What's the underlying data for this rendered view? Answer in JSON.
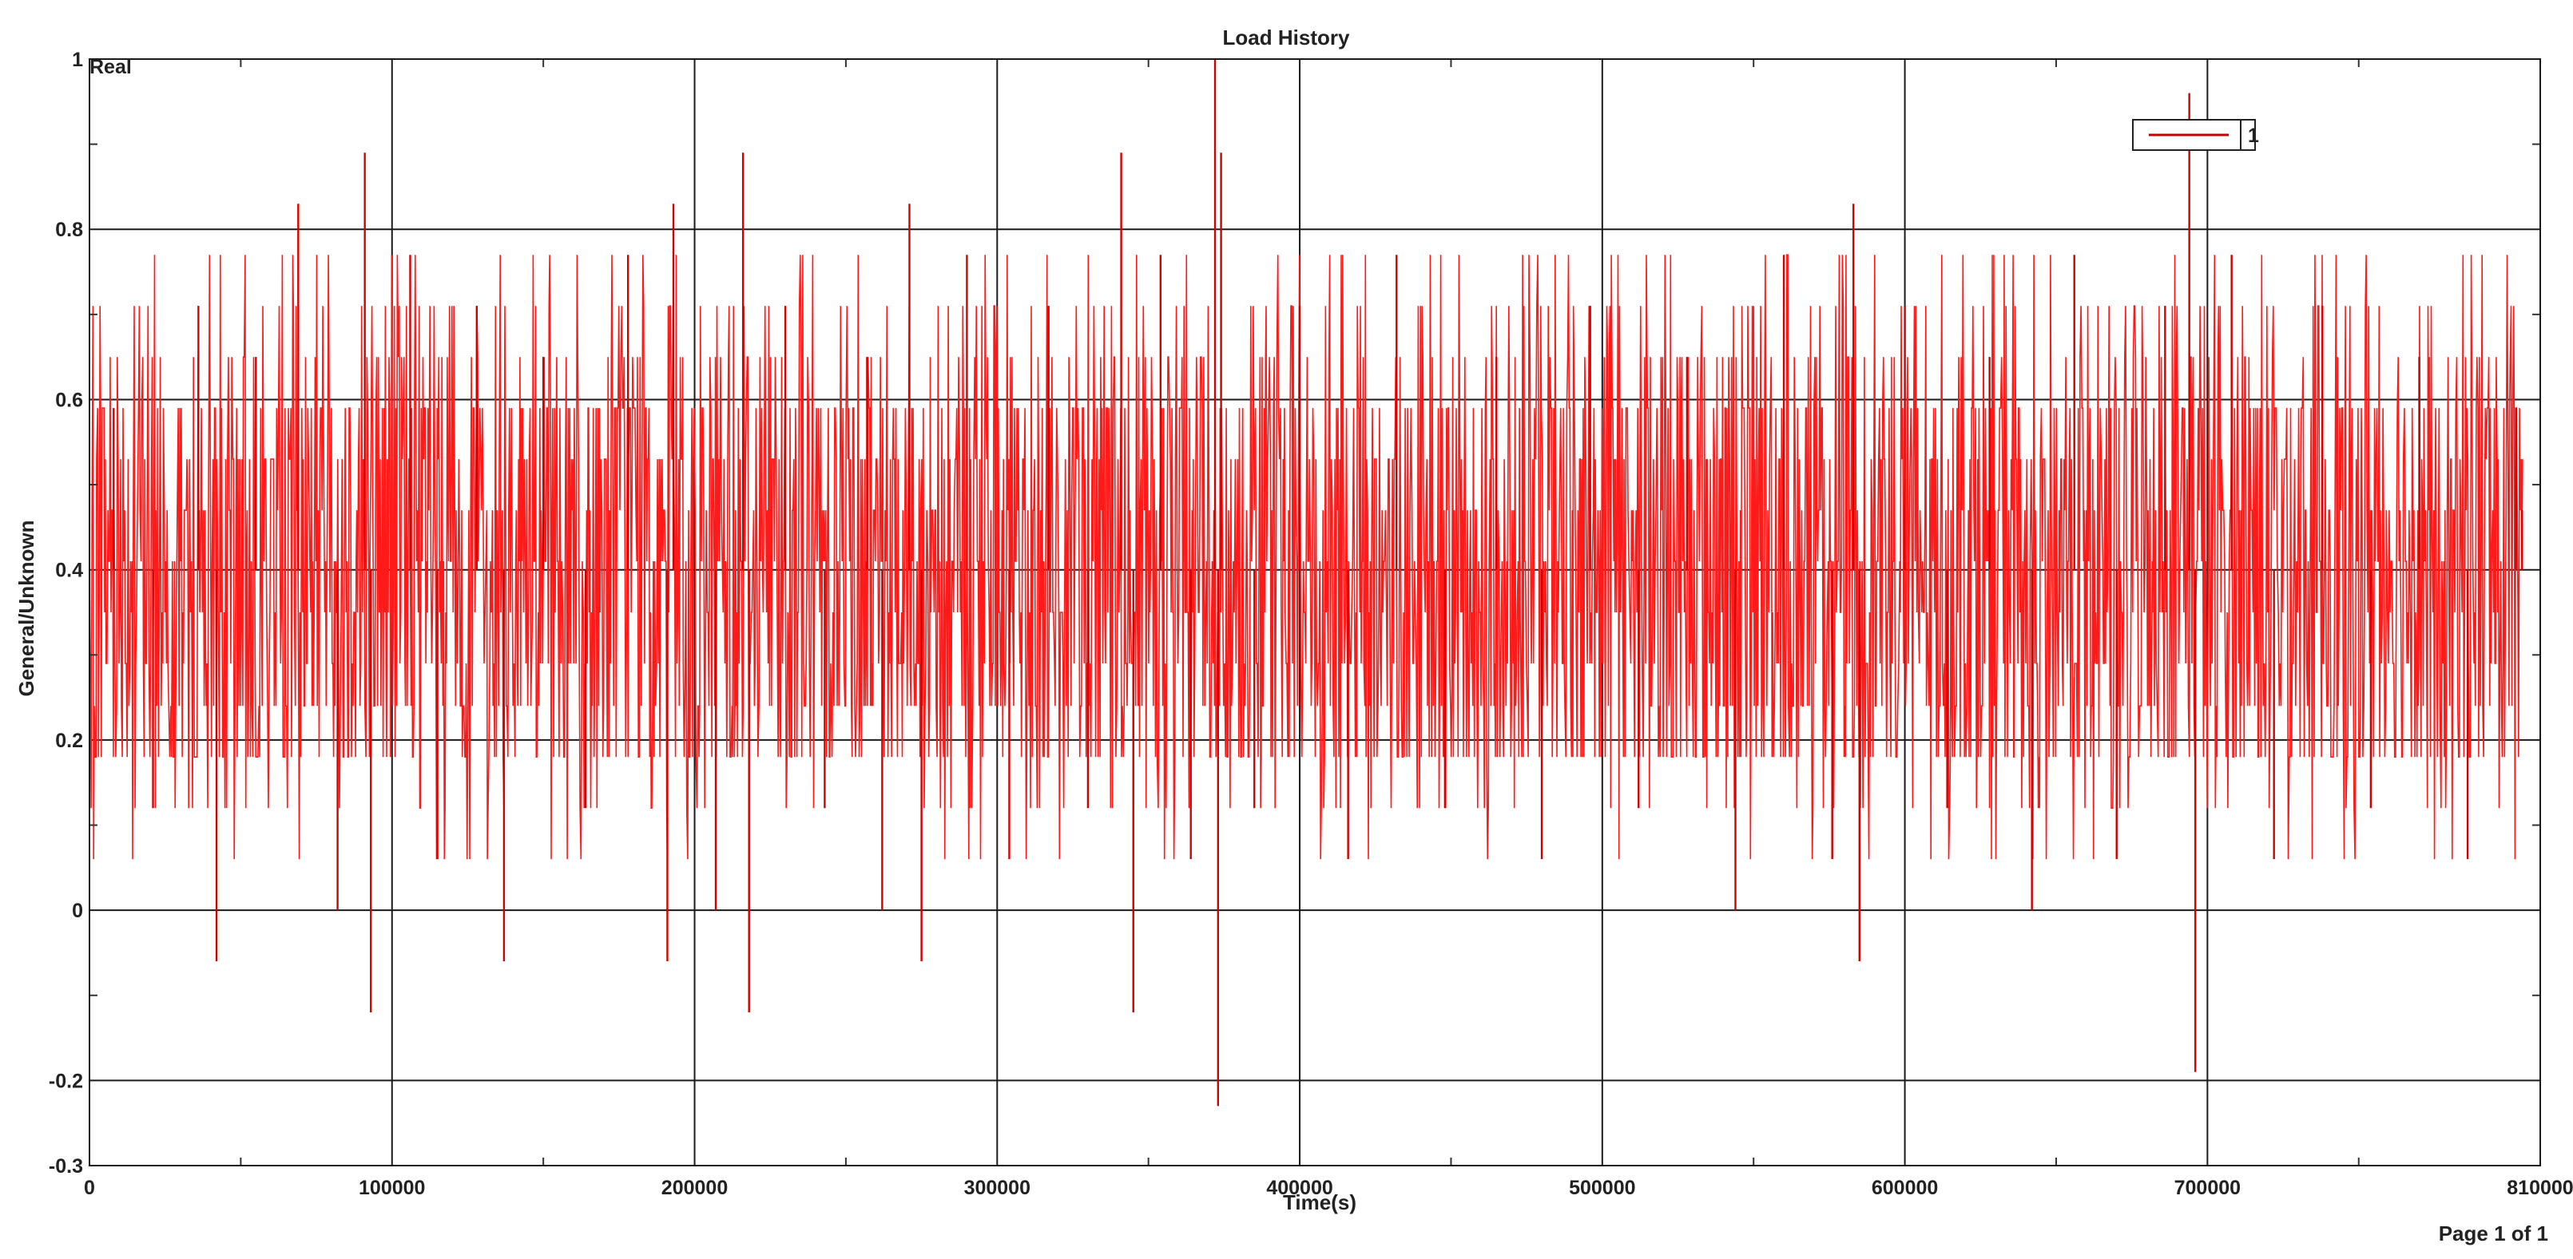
{
  "chart_data": {
    "type": "line",
    "title": "Load History",
    "xlabel": "Time(s)",
    "ylabel": "General/Unknown",
    "corner_label": "Real",
    "xlim": [
      0,
      810000
    ],
    "ylim": [
      -0.3,
      1
    ],
    "x_ticks": [
      0,
      100000,
      200000,
      300000,
      400000,
      500000,
      600000,
      700000,
      810000
    ],
    "y_ticks": [
      -0.3,
      -0.2,
      0,
      0.2,
      0.4,
      0.6,
      0.8,
      1
    ],
    "grid": true,
    "legend_position": "top-right",
    "series": [
      {
        "name": "1",
        "color": "#ff1a1a",
        "x": [
          0,
          8000,
          21000,
          36000,
          42000,
          55000,
          69000,
          82000,
          91000,
          93000,
          106000,
          115000,
          128000,
          137000,
          150000,
          164000,
          178000,
          191000,
          193000,
          207000,
          216000,
          218000,
          230000,
          243000,
          257000,
          262000,
          271000,
          275000,
          290000,
          304000,
          317000,
          330000,
          341000,
          345000,
          354000,
          364000,
          372000,
          373000,
          374000,
          385000,
          400000,
          416000,
          432000,
          448000,
          465000,
          480000,
          496000,
          512000,
          528000,
          544000,
          560000,
          576000,
          583000,
          585000,
          600000,
          614000,
          628000,
          642000,
          656000,
          670000,
          686000,
          694000,
          696000,
          708000,
          722000,
          738000,
          754000,
          770000,
          786000,
          802000,
          804000
        ],
        "y": [
          0.18,
          0.59,
          0.12,
          0.71,
          -0.06,
          0.65,
          0.83,
          0.0,
          0.89,
          -0.12,
          0.77,
          0.06,
          0.71,
          -0.06,
          0.65,
          0.12,
          0.77,
          -0.06,
          0.83,
          0.0,
          0.89,
          -0.12,
          0.71,
          0.12,
          0.65,
          -0.0,
          0.83,
          -0.06,
          0.77,
          0.06,
          0.71,
          0.12,
          0.89,
          -0.12,
          0.77,
          0.06,
          1.0,
          -0.23,
          0.89,
          0.12,
          0.71,
          0.06,
          0.77,
          0.12,
          0.65,
          0.06,
          0.71,
          0.12,
          0.65,
          0.0,
          0.77,
          0.06,
          0.83,
          -0.06,
          0.71,
          0.12,
          0.65,
          0.0,
          0.77,
          0.06,
          0.71,
          0.96,
          -0.19,
          0.77,
          0.06,
          0.71,
          0.12,
          0.65,
          0.06,
          0.59,
          0.47
        ]
      }
    ]
  },
  "footer": {
    "page_label": "Page 1 of 1"
  }
}
